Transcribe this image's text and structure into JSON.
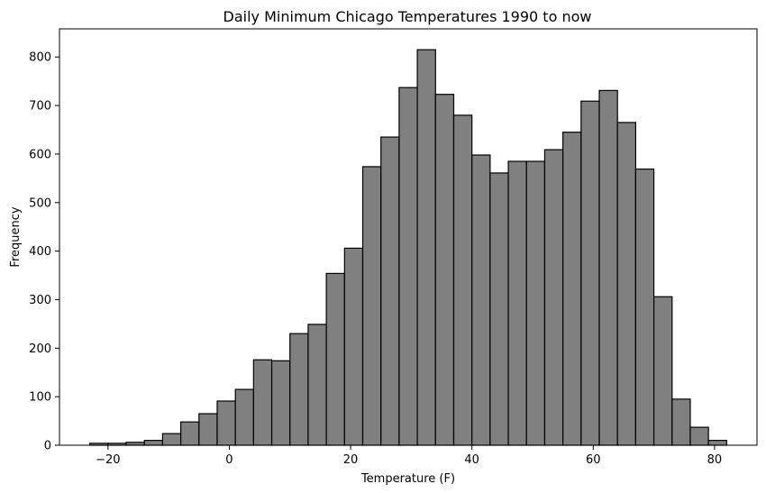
{
  "chart_data": {
    "type": "bar",
    "title": "Daily Minimum Chicago Temperatures 1990 to now",
    "xlabel": "Temperature (F)",
    "ylabel": "Frequency",
    "xlim": [
      -28,
      87
    ],
    "ylim": [
      0,
      858
    ],
    "xticks": [
      -20,
      0,
      20,
      40,
      60,
      80
    ],
    "yticks": [
      0,
      100,
      200,
      300,
      400,
      500,
      600,
      700,
      800
    ],
    "bin_start": -23,
    "bin_width": 3,
    "values": [
      4,
      4,
      6,
      10,
      24,
      48,
      65,
      91,
      115,
      176,
      174,
      230,
      249,
      354,
      406,
      574,
      635,
      737,
      815,
      723,
      680,
      598,
      561,
      585,
      585,
      609,
      645,
      709,
      731,
      665,
      569,
      306,
      95,
      37,
      10
    ],
    "grid": false,
    "colors": {
      "bar_fill": "#808080",
      "bar_edge": "#000000"
    }
  }
}
